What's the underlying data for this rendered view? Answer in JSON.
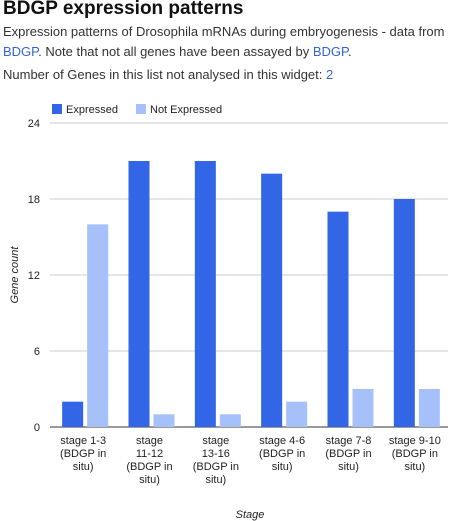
{
  "header": {
    "title": "BDGP expression patterns",
    "description_pre": "Expression patterns of Drosophila mRNAs during embryogenesis - data from ",
    "description_link1": "BDGP",
    "description_mid": ". Note that not all genes have been assayed by ",
    "description_link2": "BDGP",
    "description_post": ".",
    "not_analysed_label": "Number of Genes in this list not analysed in this widget: ",
    "not_analysed_count": "2"
  },
  "colors": {
    "expressed": "#3366e6",
    "not_expressed": "#a6c0fa",
    "axis_text": "#222222",
    "grid": "#cccccc"
  },
  "chart_data": {
    "type": "bar",
    "title": "",
    "xlabel": "Stage",
    "ylabel": "Gene count",
    "ylim": [
      0,
      24
    ],
    "yticks": [
      0,
      6,
      12,
      18,
      24
    ],
    "legend_position": "top-left",
    "grid": true,
    "categories": [
      [
        "stage 1-3",
        "(BDGP in",
        "situ)"
      ],
      [
        "stage",
        "11-12",
        "(BDGP in",
        "situ)"
      ],
      [
        "stage",
        "13-16",
        "(BDGP in",
        "situ)"
      ],
      [
        "stage 4-6",
        "(BDGP in",
        "situ)"
      ],
      [
        "stage 7-8",
        "(BDGP in",
        "situ)"
      ],
      [
        "stage 9-10",
        "(BDGP in",
        "situ)"
      ]
    ],
    "series": [
      {
        "name": "Expressed",
        "values": [
          2,
          21,
          21,
          20,
          17,
          18
        ]
      },
      {
        "name": "Not Expressed",
        "values": [
          16,
          1,
          1,
          2,
          3,
          3
        ]
      }
    ]
  }
}
